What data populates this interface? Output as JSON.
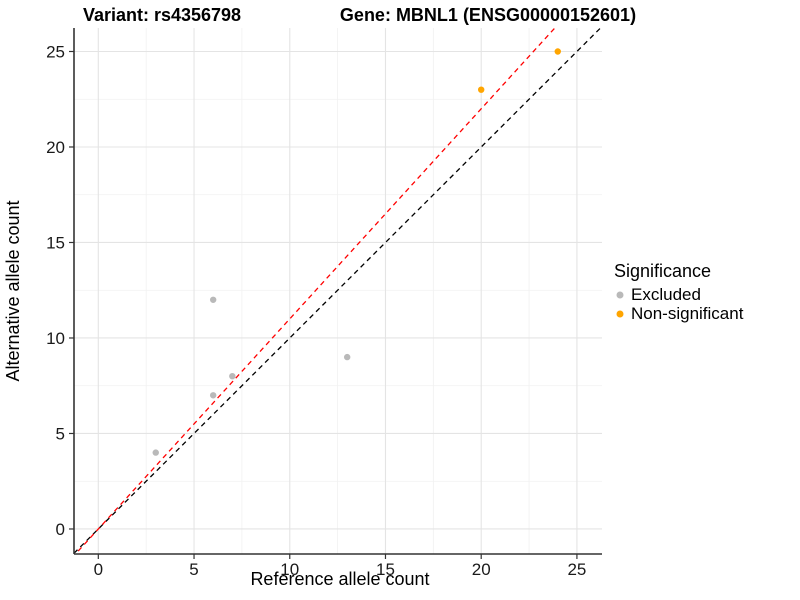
{
  "chart_data": {
    "type": "scatter",
    "title_left": "Variant: rs4356798",
    "title_right": "Gene: MBNL1 (ENSG00000152601)",
    "xlabel": "Reference allele count",
    "ylabel": "Alternative allele count",
    "xlim": [
      -1.27,
      26.31
    ],
    "ylim": [
      -1.31,
      26.23
    ],
    "xticks": [
      0,
      5,
      10,
      15,
      20,
      25
    ],
    "yticks": [
      0,
      5,
      10,
      15,
      20,
      25
    ],
    "grid": {
      "major": true,
      "minor": true,
      "major_color": "#e4e4e4",
      "minor_color": "#f1f1f1"
    },
    "axis_color": "#333333",
    "tick_label_color": "#1a1a1a",
    "point_radius": 3.2,
    "series": [
      {
        "name": "Excluded",
        "color": "#b9b9b9",
        "points": [
          [
            3,
            4
          ],
          [
            6,
            7
          ],
          [
            6,
            12
          ],
          [
            7,
            8
          ],
          [
            13,
            9
          ]
        ]
      },
      {
        "name": "Non-significant",
        "color": "#ffa500",
        "points": [
          [
            20,
            23
          ],
          [
            24,
            25
          ]
        ]
      }
    ],
    "lines": [
      {
        "name": "identity-line",
        "color": "#000000",
        "slope": 1.0,
        "intercept": 0,
        "dash": "5 4"
      },
      {
        "name": "ratio-line",
        "color": "#ff0000",
        "slope": 1.1,
        "intercept": 0,
        "dash": "5 4"
      }
    ],
    "legend": {
      "title": "Significance",
      "position": "right",
      "entries": [
        {
          "label": "Excluded",
          "color": "#b9b9b9"
        },
        {
          "label": "Non-significant",
          "color": "#ffa500"
        }
      ]
    }
  }
}
